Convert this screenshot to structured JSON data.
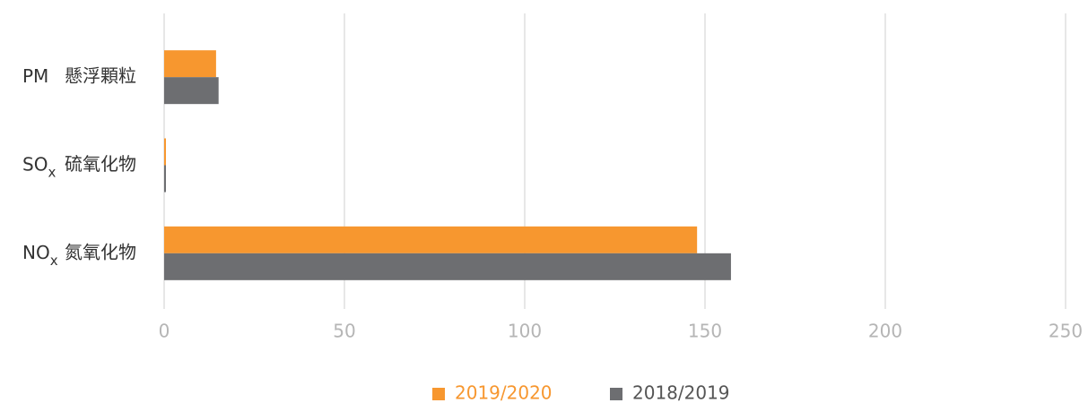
{
  "chart_data": {
    "type": "hbar",
    "categories": [
      {
        "code": "PM",
        "name": "懸浮顆粒"
      },
      {
        "code": "SO",
        "sub": "x",
        "name": "硫氧化物"
      },
      {
        "code": "NO",
        "sub": "x",
        "name": "氮氧化物"
      }
    ],
    "series": [
      {
        "name": "2019/2020",
        "color": "#f7972f",
        "values": [
          14.4,
          0.5,
          147.8
        ]
      },
      {
        "name": "2018/2019",
        "color": "#6d6e71",
        "values": [
          15.1,
          0.5,
          157.2
        ]
      }
    ],
    "xlim": [
      0,
      250
    ],
    "xticks": [
      0,
      50,
      100,
      150,
      200,
      250
    ],
    "grid": true,
    "legend": "bottom"
  }
}
